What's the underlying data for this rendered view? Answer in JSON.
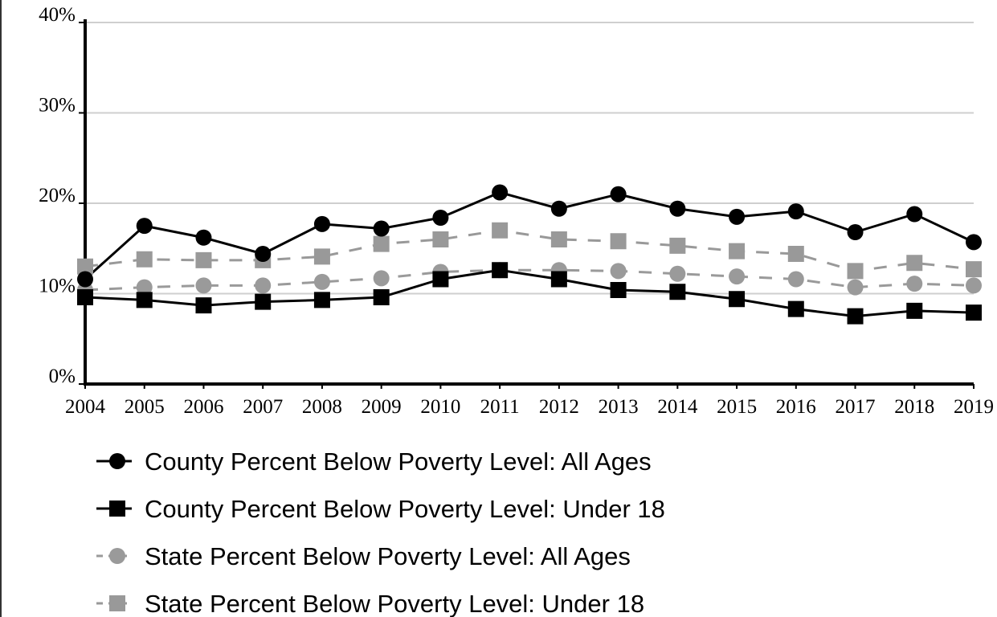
{
  "chart_data": {
    "type": "line",
    "title": "",
    "xlabel": "",
    "ylabel": "",
    "x": [
      "2004",
      "2005",
      "2006",
      "2007",
      "2008",
      "2009",
      "2010",
      "2011",
      "2012",
      "2013",
      "2014",
      "2015",
      "2016",
      "2017",
      "2018",
      "2019"
    ],
    "ylim": [
      0,
      40
    ],
    "yticks": [
      "0%",
      "10%",
      "20%",
      "30%",
      "40%"
    ],
    "grid": "horizontal",
    "legend_position": "bottom",
    "series": [
      {
        "name": "County Percent Below Poverty Level: All Ages",
        "values": [
          11.6,
          17.5,
          16.2,
          14.4,
          17.7,
          17.2,
          18.4,
          21.2,
          19.4,
          21.0,
          19.4,
          18.5,
          19.1,
          16.8,
          18.8,
          15.7
        ],
        "color": "#000000",
        "marker": "circle",
        "dashed": false
      },
      {
        "name": "County Percent Below Poverty Level: Under 18",
        "values": [
          9.6,
          9.3,
          8.7,
          9.1,
          9.3,
          9.6,
          11.6,
          12.6,
          11.6,
          10.4,
          10.2,
          9.4,
          8.3,
          7.5,
          8.1,
          7.9
        ],
        "color": "#000000",
        "marker": "square",
        "dashed": false
      },
      {
        "name": "State Percent Below Poverty Level: All Ages",
        "values": [
          10.4,
          10.7,
          10.9,
          10.9,
          11.3,
          11.7,
          12.4,
          12.6,
          12.6,
          12.5,
          12.2,
          11.9,
          11.6,
          10.7,
          11.1,
          10.9
        ],
        "color": "#9a9a9a",
        "marker": "circle",
        "dashed": true
      },
      {
        "name": "State Percent Below Poverty Level: Under 18",
        "values": [
          13.0,
          13.8,
          13.7,
          13.7,
          14.1,
          15.5,
          16.0,
          17.0,
          16.0,
          15.8,
          15.3,
          14.7,
          14.4,
          12.5,
          13.4,
          12.7
        ],
        "color": "#999999",
        "marker": "square",
        "dashed": true
      }
    ]
  }
}
